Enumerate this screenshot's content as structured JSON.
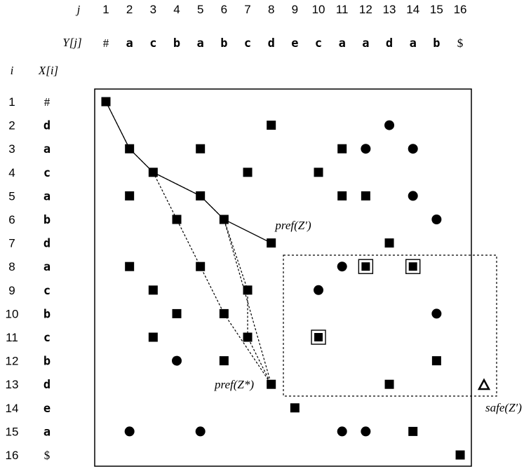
{
  "header": {
    "j_label": "j",
    "y_label": "Y[j]",
    "i_label": "i",
    "x_label": "X[i]"
  },
  "j_values": [
    "1",
    "2",
    "3",
    "4",
    "5",
    "6",
    "7",
    "8",
    "9",
    "10",
    "11",
    "12",
    "13",
    "14",
    "15",
    "16"
  ],
  "Y": [
    "#",
    "a",
    "c",
    "b",
    "a",
    "b",
    "c",
    "d",
    "e",
    "c",
    "a",
    "a",
    "d",
    "a",
    "b",
    "$"
  ],
  "i_values": [
    "1",
    "2",
    "3",
    "4",
    "5",
    "6",
    "7",
    "8",
    "9",
    "10",
    "11",
    "12",
    "13",
    "14",
    "15",
    "16"
  ],
  "X": [
    "#",
    "d",
    "a",
    "c",
    "a",
    "b",
    "d",
    "a",
    "c",
    "b",
    "c",
    "b",
    "d",
    "e",
    "a",
    "$"
  ],
  "squares": [
    [
      1,
      1
    ],
    [
      2,
      8
    ],
    [
      3,
      2
    ],
    [
      3,
      5
    ],
    [
      3,
      11
    ],
    [
      4,
      3
    ],
    [
      4,
      7
    ],
    [
      4,
      10
    ],
    [
      5,
      2
    ],
    [
      5,
      5
    ],
    [
      5,
      11
    ],
    [
      5,
      12
    ],
    [
      6,
      4
    ],
    [
      6,
      6
    ],
    [
      7,
      8
    ],
    [
      7,
      13
    ],
    [
      8,
      2
    ],
    [
      8,
      5
    ],
    [
      9,
      3
    ],
    [
      9,
      7
    ],
    [
      10,
      4
    ],
    [
      10,
      6
    ],
    [
      11,
      3
    ],
    [
      11,
      7
    ],
    [
      12,
      6
    ],
    [
      12,
      15
    ],
    [
      13,
      8
    ],
    [
      13,
      13
    ],
    [
      14,
      9
    ],
    [
      15,
      14
    ],
    [
      16,
      16
    ]
  ],
  "framed_squares": [
    [
      8,
      12
    ],
    [
      8,
      14
    ],
    [
      11,
      10
    ]
  ],
  "circles": [
    [
      2,
      13
    ],
    [
      3,
      12
    ],
    [
      3,
      14
    ],
    [
      5,
      14
    ],
    [
      6,
      15
    ],
    [
      8,
      11
    ],
    [
      9,
      10
    ],
    [
      10,
      15
    ],
    [
      12,
      4
    ],
    [
      15,
      2
    ],
    [
      15,
      5
    ],
    [
      15,
      11
    ],
    [
      15,
      12
    ]
  ],
  "solid_path": [
    [
      1,
      1
    ],
    [
      3,
      2
    ],
    [
      4,
      3
    ],
    [
      5,
      5
    ],
    [
      6,
      6
    ],
    [
      7,
      8
    ]
  ],
  "dotted_paths": [
    [
      [
        1,
        1
      ],
      [
        3,
        2
      ],
      [
        4,
        3
      ],
      [
        5,
        5
      ],
      [
        6,
        6
      ],
      [
        13,
        8
      ]
    ],
    [
      [
        4,
        3
      ],
      [
        6,
        4
      ],
      [
        10,
        6
      ],
      [
        13,
        8
      ]
    ],
    [
      [
        6,
        6
      ],
      [
        9,
        7
      ],
      [
        11,
        7
      ],
      [
        13,
        8
      ]
    ]
  ],
  "labels": {
    "pref_z_prime": "pref(Z′)",
    "pref_z_star": "pref(Z*)",
    "safe_z_prime": "safe(Z′)"
  },
  "triangle": [
    13,
    17
  ]
}
